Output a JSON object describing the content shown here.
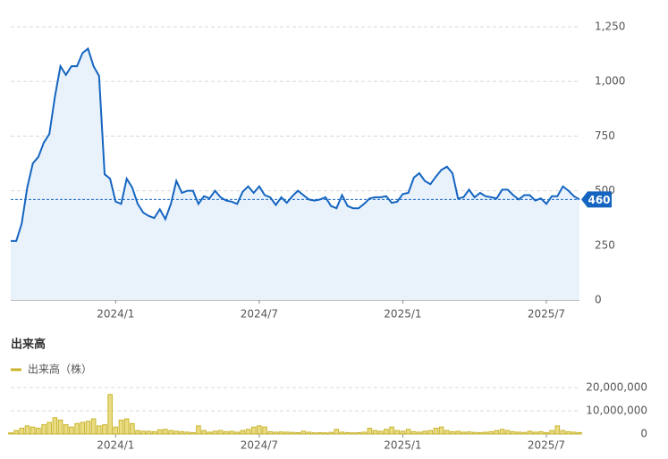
{
  "chart_data": [
    {
      "type": "line",
      "color": "#1565c0",
      "fill": "#e9f2fb",
      "grid": true,
      "ylim": [
        0,
        1250
      ],
      "yticks": [
        0,
        250,
        500,
        750,
        {
          "value": 1000,
          "label": "1,000"
        },
        {
          "value": 1250,
          "label": "1,250"
        }
      ],
      "current_value": 460,
      "categories": [
        null,
        null,
        null,
        null,
        null,
        null,
        null,
        null,
        null,
        null,
        null,
        null,
        null,
        null,
        null,
        null,
        null,
        null,
        null,
        "2024/1",
        null,
        null,
        null,
        null,
        null,
        null,
        null,
        null,
        null,
        null,
        null,
        null,
        null,
        null,
        null,
        null,
        null,
        null,
        null,
        null,
        null,
        null,
        null,
        null,
        null,
        "2024/7",
        null,
        null,
        null,
        null,
        null,
        null,
        null,
        null,
        null,
        null,
        null,
        null,
        null,
        null,
        null,
        null,
        null,
        null,
        null,
        null,
        null,
        null,
        null,
        null,
        null,
        "2025/1",
        null,
        null,
        null,
        null,
        null,
        null,
        null,
        null,
        null,
        null,
        null,
        null,
        null,
        null,
        null,
        null,
        null,
        null,
        null,
        null,
        null,
        null,
        null,
        null,
        null,
        "2025/7",
        null,
        null,
        null,
        null,
        null,
        null
      ],
      "values": [
        270,
        270,
        350,
        515,
        625,
        655,
        720,
        760,
        930,
        1070,
        1030,
        1070,
        1070,
        1130,
        1150,
        1070,
        1025,
        575,
        555,
        450,
        440,
        555,
        515,
        440,
        400,
        385,
        375,
        415,
        370,
        440,
        545,
        490,
        500,
        500,
        440,
        475,
        465,
        500,
        470,
        455,
        450,
        440,
        495,
        520,
        490,
        520,
        480,
        470,
        435,
        470,
        445,
        475,
        500,
        480,
        460,
        455,
        460,
        470,
        430,
        420,
        480,
        430,
        420,
        420,
        440,
        465,
        470,
        470,
        475,
        445,
        450,
        485,
        490,
        560,
        580,
        545,
        530,
        565,
        595,
        610,
        580,
        465,
        470,
        505,
        470,
        490,
        475,
        470,
        465,
        505,
        505,
        480,
        460,
        480,
        480,
        455,
        465,
        440,
        475,
        475,
        520,
        500,
        475,
        460
      ]
    },
    {
      "type": "bar",
      "title": "出来高",
      "grid": true,
      "ylim": [
        0,
        20000000
      ],
      "yticks": [
        0,
        {
          "value": 10000000,
          "label": "10,000,000"
        },
        {
          "value": 20000000,
          "label": "20,000,000"
        }
      ],
      "categories": [
        null,
        null,
        null,
        null,
        null,
        null,
        null,
        null,
        null,
        null,
        null,
        null,
        null,
        null,
        null,
        null,
        null,
        null,
        null,
        "2024/1",
        null,
        null,
        null,
        null,
        null,
        null,
        null,
        null,
        null,
        null,
        null,
        null,
        null,
        null,
        null,
        null,
        null,
        null,
        null,
        null,
        null,
        null,
        null,
        null,
        null,
        "2024/7",
        null,
        null,
        null,
        null,
        null,
        null,
        null,
        null,
        null,
        null,
        null,
        null,
        null,
        null,
        null,
        null,
        null,
        null,
        null,
        null,
        null,
        null,
        null,
        null,
        null,
        "2025/1",
        null,
        null,
        null,
        null,
        null,
        null,
        null,
        null,
        null,
        null,
        null,
        null,
        null,
        null,
        null,
        null,
        null,
        null,
        null,
        null,
        null,
        null,
        null,
        null,
        null,
        "2025/7",
        null,
        null,
        null,
        null,
        null,
        null
      ],
      "series": [
        {
          "name": "出来高（株）",
          "color": "#c9b52c",
          "values": [
            500000,
            1500000,
            2500000,
            3500000,
            3000000,
            2500000,
            4000000,
            5000000,
            7000000,
            6000000,
            4000000,
            3000000,
            4500000,
            5000000,
            5500000,
            6500000,
            3500000,
            4000000,
            17000000,
            3000000,
            6000000,
            6500000,
            4500000,
            1500000,
            1200000,
            1200000,
            1000000,
            1800000,
            2000000,
            1500000,
            1200000,
            1000000,
            800000,
            600000,
            3500000,
            1500000,
            800000,
            1200000,
            1500000,
            1000000,
            1200000,
            800000,
            1500000,
            2000000,
            3000000,
            3500000,
            3000000,
            1000000,
            800000,
            900000,
            800000,
            700000,
            600000,
            1200000,
            800000,
            500000,
            600000,
            500000,
            700000,
            2000000,
            800000,
            600000,
            500000,
            600000,
            800000,
            2500000,
            1500000,
            1200000,
            2000000,
            3000000,
            1500000,
            1200000,
            2000000,
            1000000,
            800000,
            1200000,
            1500000,
            2500000,
            3000000,
            1500000,
            1000000,
            1200000,
            800000,
            900000,
            700000,
            600000,
            800000,
            1000000,
            1500000,
            2000000,
            1500000,
            1000000,
            800000,
            700000,
            1200000,
            800000,
            1000000,
            600000,
            1500000,
            3500000,
            1500000,
            1000000,
            800000,
            600000
          ]
        }
      ]
    }
  ]
}
